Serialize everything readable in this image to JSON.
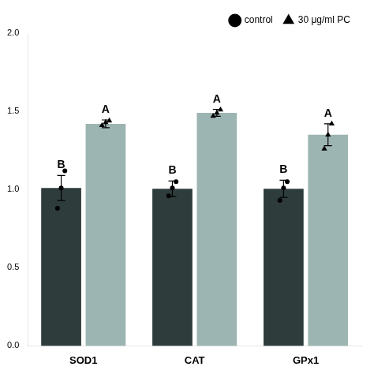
{
  "chart_data": {
    "type": "bar",
    "categories": [
      "SOD1",
      "CAT",
      "GPx1"
    ],
    "series": [
      {
        "name": "control",
        "color": "#2e3c3c",
        "marker": "circle",
        "values": [
          1.01,
          1.005,
          1.005
        ],
        "errors": [
          0.08,
          0.05,
          0.055
        ],
        "points": [
          [
            0.88,
            1.01,
            1.12
          ],
          [
            0.96,
            1.01,
            1.05
          ],
          [
            0.93,
            1.01,
            1.05
          ]
        ],
        "annotations": [
          "B",
          "B",
          "B"
        ]
      },
      {
        "name": "30 μg/ml PC",
        "color": "#9db5b2",
        "marker": "triangle",
        "values": [
          1.42,
          1.49,
          1.35
        ],
        "errors": [
          0.025,
          0.022,
          0.07
        ],
        "points": [
          [
            1.41,
            1.43,
            1.44
          ],
          [
            1.47,
            1.49,
            1.51
          ],
          [
            1.26,
            1.35,
            1.42
          ]
        ],
        "annotations": [
          "A",
          "A",
          "A"
        ]
      }
    ],
    "ylim": [
      0.0,
      2.0
    ],
    "yticks": [
      {
        "value": 0.0,
        "label": "0.0"
      },
      {
        "value": 0.5,
        "label": "0.5"
      },
      {
        "value": 1.0,
        "label": "1.0"
      },
      {
        "value": 1.5,
        "label": "1.5"
      },
      {
        "value": 2.0,
        "label": "2.0"
      }
    ],
    "grid": false,
    "legend": "upper right"
  }
}
